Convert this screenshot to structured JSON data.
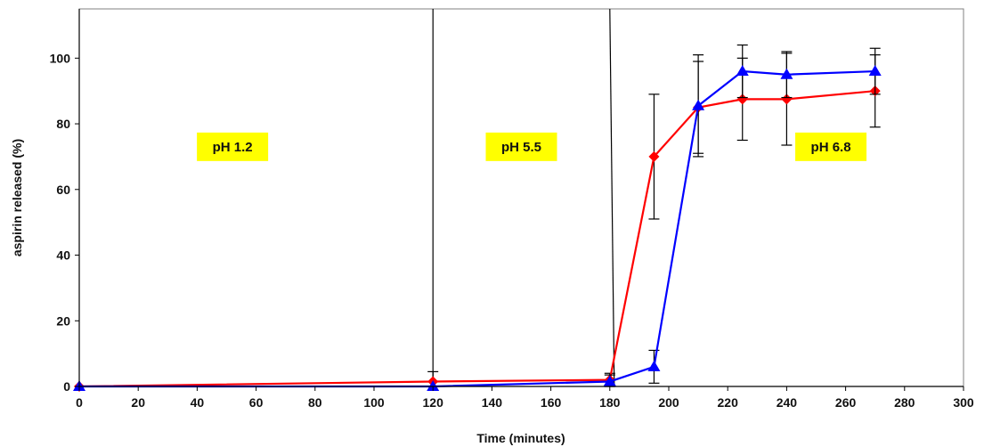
{
  "chart_data": {
    "type": "line",
    "xlabel": "Time (minutes)",
    "ylabel": "aspirin released (%)",
    "xlim": [
      0,
      300
    ],
    "ylim": [
      0,
      115
    ],
    "x_ticks": [
      0,
      20,
      40,
      60,
      80,
      100,
      120,
      140,
      160,
      180,
      200,
      220,
      240,
      260,
      280,
      300
    ],
    "y_ticks": [
      0,
      20,
      40,
      60,
      80,
      100
    ],
    "grid": false,
    "legend": "none",
    "vertical_lines": [
      120,
      180
    ],
    "annotations": [
      {
        "text": "pH 1.2",
        "x": 52,
        "y": 73
      },
      {
        "text": "pH 5.5",
        "x": 150,
        "y": 73
      },
      {
        "text": "pH 6.8",
        "x": 255,
        "y": 73
      }
    ],
    "series": [
      {
        "color": "#ff0000",
        "marker": "diamond",
        "x": [
          0,
          120,
          180,
          195,
          210,
          225,
          240,
          270
        ],
        "y": [
          0,
          1.5,
          2,
          70,
          85,
          87.5,
          87.5,
          90
        ],
        "err": [
          0,
          3,
          2,
          19,
          14,
          12.5,
          14,
          11
        ]
      },
      {
        "color": "#0000ff",
        "marker": "triangle",
        "x": [
          0,
          120,
          180,
          195,
          210,
          225,
          240,
          270
        ],
        "y": [
          0,
          0,
          1.5,
          6,
          85.5,
          96,
          95,
          96
        ],
        "err": [
          0,
          0,
          2,
          5,
          15.5,
          8,
          7,
          7
        ]
      }
    ]
  }
}
